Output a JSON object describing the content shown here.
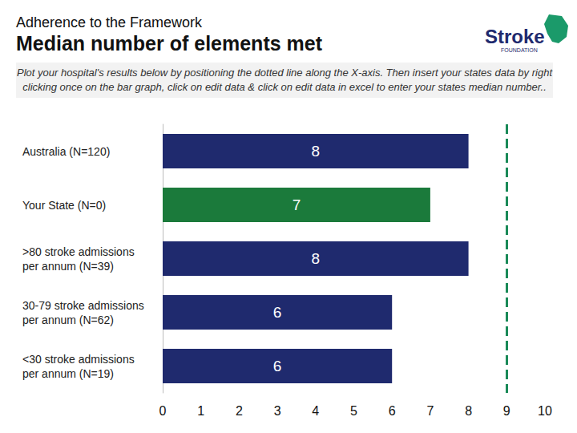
{
  "header": "Adherence to the Framework",
  "logo": {
    "text": "Stroke",
    "subtext": "FOUNDATION"
  },
  "chart_data": {
    "type": "bar",
    "orientation": "horizontal",
    "title": "Median number of elements met",
    "subtitle": "Plot your hospital's results below by positioning the dotted line along the X-axis. Then insert your states data by right clicking once on the bar graph, click on edit data & click on edit data in excel to enter your states median number..",
    "categories": [
      "Australia (N=120)",
      "Your State (N=0)",
      ">80 stroke admissions\nper annum (N=39)",
      "30-79 stroke admissions\nper annum (N=62)",
      "<30 stroke admissions\nper annum (N=19)"
    ],
    "values": [
      8,
      7,
      8,
      6,
      6
    ],
    "colors": [
      "#1f2a6e",
      "#1b7a3b",
      "#1f2a6e",
      "#1f2a6e",
      "#1f2a6e"
    ],
    "data_labels": true,
    "xlim": [
      0,
      10
    ],
    "xticks": [
      0,
      1,
      2,
      3,
      4,
      5,
      6,
      7,
      8,
      9,
      10
    ],
    "grid": false,
    "annotations": [
      {
        "type": "vline",
        "x": 9,
        "color": "#1a8a58",
        "line_style": "dashed"
      }
    ]
  }
}
